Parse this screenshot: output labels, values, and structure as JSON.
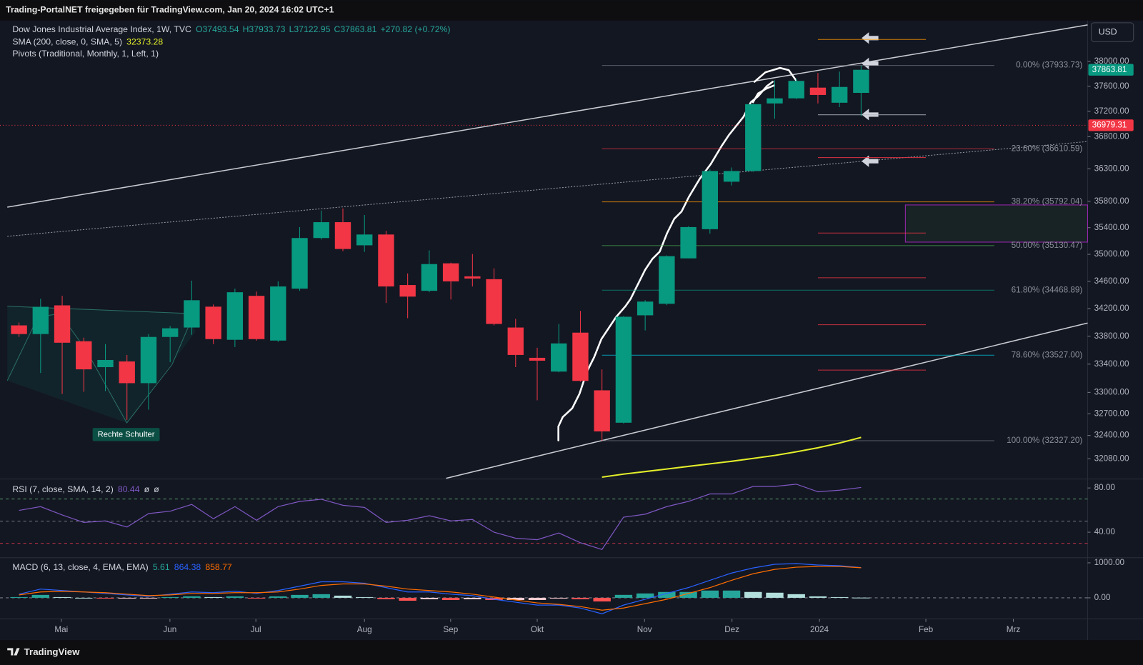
{
  "header": {
    "title": "Trading-PortalNET freigegeben für TradingView.com, Jan 20, 2024 16:02 UTC+1"
  },
  "footer": {
    "brand": "TradingView"
  },
  "chart_data": [
    {
      "type": "candlestick",
      "title": "Dow Jones Industrial Average Index, 1W, TVC",
      "legend": {
        "open": "O37493.54",
        "high": "H37933.73",
        "low": "L37122.95",
        "close": "C37863.81",
        "change": "+270.82 (+0.72%)",
        "sma": "SMA (200, close, 0, SMA, 5)",
        "pivots": "Pivots (Traditional, Monthly, 1, Left, 1)"
      },
      "categories": [
        null,
        null,
        null,
        null,
        null,
        null,
        null,
        null,
        null,
        null,
        null,
        null,
        null,
        null,
        null,
        null,
        null,
        null,
        null,
        null,
        null,
        null,
        null,
        null,
        null,
        null,
        null,
        null,
        null,
        null,
        null,
        null,
        null,
        null,
        null,
        null,
        null,
        null,
        null,
        null
      ],
      "open": [
        33956,
        33831,
        34247,
        33727,
        33357,
        33438,
        33130,
        33789,
        33925,
        34228,
        33748,
        34386,
        33737,
        34492,
        35244,
        35483,
        35135,
        35297,
        34545,
        34460,
        34866,
        34673,
        34631,
        33925,
        33490,
        33294,
        33851,
        33029,
        32576,
        34102,
        34270,
        34940,
        35377,
        36100,
        36265,
        37325,
        37406,
        37577,
        37336,
        37493.54
      ],
      "high": [
        33998,
        34343,
        34385,
        33779,
        33686,
        33531,
        33831,
        33946,
        34610,
        34260,
        34492,
        34449,
        34599,
        35409,
        35658,
        35691,
        35592,
        35352,
        34716,
        35059,
        34876,
        35005,
        34791,
        34050,
        33634,
        33977,
        34166,
        33325,
        34091,
        34323,
        34984,
        35420,
        36290,
        36320,
        37325,
        37695,
        37720,
        37812,
        37835,
        37933.73
      ],
      "low": [
        33790,
        33274,
        32979,
        33009,
        33019,
        32616,
        32757,
        33428,
        33820,
        33686,
        33644,
        33737,
        33717,
        34460,
        35222,
        35048,
        35037,
        34281,
        34060,
        34439,
        34333,
        34524,
        33956,
        33357,
        32889,
        33284,
        33151,
        32327.2,
        32566,
        33883,
        34249,
        34940,
        35310,
        36043,
        36254,
        37083,
        37394,
        37325,
        37266,
        37122.95
      ],
      "close": [
        33831,
        34226,
        33706,
        33326,
        33459,
        33130,
        33789,
        33914,
        34322,
        33758,
        34439,
        33758,
        34524,
        35244,
        35483,
        35080,
        35297,
        34524,
        34375,
        34855,
        34599,
        34641,
        33977,
        33531,
        33449,
        33696,
        33162,
        32456,
        34081,
        34302,
        34973,
        35409,
        36265,
        36265,
        37313,
        37406,
        37685,
        37460,
        37588,
        37863.81
      ],
      "up_color": "#089981",
      "down_color": "#f23645",
      "sma": {
        "color": "#e3ee2a",
        "values": [
          null,
          null,
          null,
          null,
          null,
          null,
          null,
          null,
          null,
          null,
          null,
          null,
          null,
          null,
          null,
          null,
          null,
          null,
          null,
          null,
          null,
          null,
          null,
          null,
          null,
          null,
          null,
          31830,
          31870,
          31905,
          31940,
          31975,
          32010,
          32045,
          32085,
          32125,
          32175,
          32230,
          32295,
          32373.28
        ]
      },
      "fib_levels": [
        {
          "label": "0.00% (37933.73)",
          "value": 37933.73,
          "color": "#787b86"
        },
        {
          "label": "23.60% (36610.59)",
          "value": 36610.59,
          "color": "#f23645"
        },
        {
          "label": "38.20% (35792.04)",
          "value": 35792.04,
          "color": "#ff9800"
        },
        {
          "label": "50.00% (35130.47)",
          "value": 35130.47,
          "color": "#4caf50"
        },
        {
          "label": "61.80% (34468.89)",
          "value": 34468.89,
          "color": "#089981"
        },
        {
          "label": "78.60% (33527.00)",
          "value": 33527.0,
          "color": "#00bcd4"
        },
        {
          "label": "100.00% (32327.20)",
          "value": 32327.2,
          "color": "#787b86"
        }
      ],
      "pivot_levels": [
        {
          "value": 38356,
          "color": "#ff9800"
        },
        {
          "value": 37145,
          "color": "#b2b5be"
        },
        {
          "value": 36474,
          "color": "#f23645"
        },
        {
          "value": 35319,
          "color": "#f23645"
        },
        {
          "value": 34652,
          "color": "#f23645"
        },
        {
          "value": 33966,
          "color": "#f23645"
        },
        {
          "value": 33315,
          "color": "#f23645"
        }
      ],
      "price_line": {
        "value": 36979.31,
        "color": "#f23645"
      },
      "annotation": "Rechte Schulter",
      "currency": "USD",
      "log_scale": true,
      "ylim": [
        31814,
        38643
      ],
      "yticks": [
        {
          "value": 32080,
          "label": "32080.00"
        },
        {
          "value": 32400,
          "label": "32400.00"
        },
        {
          "value": 32700,
          "label": "32700.00"
        },
        {
          "value": 33000,
          "label": "33000.00"
        },
        {
          "value": 33400,
          "label": "33400.00"
        },
        {
          "value": 33800,
          "label": "33800.00"
        },
        {
          "value": 34200,
          "label": "34200.00"
        },
        {
          "value": 34600,
          "label": "34600.00"
        },
        {
          "value": 35000,
          "label": "35000.00"
        },
        {
          "value": 35400,
          "label": "35400.00"
        },
        {
          "value": 35800,
          "label": "35800.00"
        },
        {
          "value": 36300,
          "label": "36300.00"
        },
        {
          "value": 36800,
          "label": "36800.00"
        },
        {
          "value": 37200,
          "label": "37200.00"
        },
        {
          "value": 37600,
          "label": "37600.00"
        },
        {
          "value": 38000,
          "label": "38000.00"
        }
      ],
      "xlim": [
        -0.88,
        49.49
      ],
      "xticks": [
        {
          "value": 1.96,
          "label": "Mai"
        },
        {
          "value": 6.99,
          "label": "Jun"
        },
        {
          "value": 10.97,
          "label": "Jul"
        },
        {
          "value": 16.0,
          "label": "Aug"
        },
        {
          "value": 19.99,
          "label": "Sep"
        },
        {
          "value": 24.0,
          "label": "Okt"
        },
        {
          "value": 28.97,
          "label": "Nov"
        },
        {
          "value": 33.02,
          "label": "Dez"
        },
        {
          "value": 37.07,
          "label": "2024"
        },
        {
          "value": 42.0,
          "label": "Feb"
        },
        {
          "value": 46.05,
          "label": "Mrz"
        }
      ]
    },
    {
      "type": "line",
      "title": "RSI (7, close, SMA, 14, 2)",
      "legend_extra": [
        "ø",
        "ø"
      ],
      "color": "#7e57c2",
      "values": [
        59.7,
        63.1,
        55.6,
        48.8,
        50.2,
        44.7,
        56.9,
        59.0,
        65.1,
        52.2,
        63.1,
        50.8,
        63.1,
        67.8,
        69.8,
        64.4,
        62.4,
        48.8,
        50.8,
        54.9,
        50.2,
        51.5,
        40.0,
        34.6,
        33.2,
        39.3,
        30.5,
        24.4,
        53.6,
        56.3,
        63.1,
        67.8,
        74.6,
        74.6,
        81.4,
        81.4,
        83.4,
        76.6,
        78.0,
        80.44
      ],
      "levels": [
        {
          "value": 70,
          "color": "#5b9a6a"
        },
        {
          "value": 50,
          "color": "#787b86"
        },
        {
          "value": 30,
          "color": "#c2334a"
        }
      ],
      "ylim": [
        17.6,
        88.1
      ],
      "yticks": [
        {
          "value": 80,
          "label": "80.00"
        },
        {
          "value": 40,
          "label": "40.00"
        }
      ]
    },
    {
      "type": "macd",
      "title": "MACD (6, 13, close, 4, EMA, EMA)",
      "histogram": [
        21,
        83,
        21,
        0,
        -21,
        -21,
        -20,
        21,
        42,
        21,
        41,
        -21,
        41,
        83,
        104,
        62,
        21,
        -41,
        -83,
        -41,
        -63,
        -42,
        -63,
        -63,
        -62,
        -21,
        -42,
        -104,
        84,
        125,
        167,
        167,
        208,
        208,
        167,
        146,
        104,
        41,
        21,
        5.61
      ],
      "macd": {
        "color": "#2962ff",
        "values": [
          104,
          250,
          208,
          167,
          125,
          83,
          42,
          104,
          167,
          146,
          187,
          125,
          208,
          333,
          458,
          458,
          417,
          292,
          167,
          167,
          104,
          62,
          -42,
          -125,
          -208,
          -208,
          -292,
          -458,
          -208,
          -42,
          125,
          292,
          500,
          708,
          854,
          958,
          979,
          937,
          917,
          864.38
        ]
      },
      "signal": {
        "color": "#ff6d00",
        "values": [
          83,
          167,
          187,
          167,
          146,
          104,
          62,
          83,
          125,
          125,
          146,
          146,
          167,
          250,
          354,
          396,
          396,
          333,
          250,
          208,
          167,
          104,
          21,
          -62,
          -146,
          -187,
          -250,
          -354,
          -292,
          -167,
          -42,
          125,
          292,
          500,
          687,
          812,
          875,
          896,
          896,
          858.77
        ]
      },
      "ylim": [
        -583,
        1125
      ],
      "yticks": [
        {
          "value": 1000,
          "label": "1000.00"
        },
        {
          "value": 0,
          "label": "0.00"
        }
      ]
    }
  ]
}
